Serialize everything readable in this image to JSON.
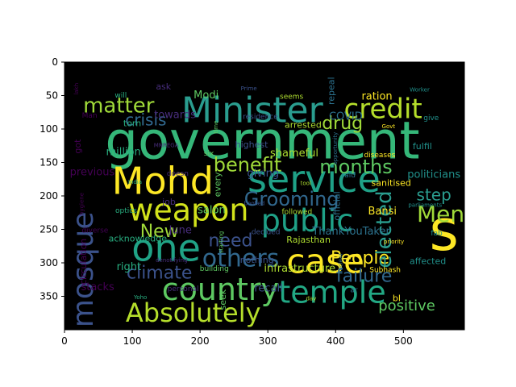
{
  "chart_data": {
    "type": "wordcloud_image",
    "xlim": [
      0,
      590
    ],
    "ylim": [
      400,
      0
    ],
    "xticks": [
      0,
      100,
      200,
      300,
      400,
      500
    ],
    "yticks": [
      0,
      50,
      100,
      150,
      200,
      250,
      300,
      350
    ],
    "background": "#000000",
    "words": [
      {
        "text": "government",
        "x": 292,
        "y": 123,
        "size": 64,
        "color": "#35b779"
      },
      {
        "text": "Minister",
        "x": 277,
        "y": 75,
        "size": 44,
        "color": "#2a9d8f"
      },
      {
        "text": "Mohd",
        "x": 145,
        "y": 182,
        "size": 46,
        "color": "#fde725"
      },
      {
        "text": "service",
        "x": 368,
        "y": 179,
        "size": 46,
        "color": "#1fa187"
      },
      {
        "text": "weapon",
        "x": 183,
        "y": 224,
        "size": 38,
        "color": "#d2e21b"
      },
      {
        "text": "public",
        "x": 358,
        "y": 240,
        "size": 38,
        "color": "#1fa187"
      },
      {
        "text": "case",
        "x": 385,
        "y": 301,
        "size": 42,
        "color": "#fde725"
      },
      {
        "text": "one",
        "x": 150,
        "y": 282,
        "size": 46,
        "color": "#20a386"
      },
      {
        "text": "others",
        "x": 260,
        "y": 295,
        "size": 30,
        "color": "#31688e"
      },
      {
        "text": "country",
        "x": 230,
        "y": 343,
        "size": 38,
        "color": "#5ec962"
      },
      {
        "text": "temple",
        "x": 395,
        "y": 347,
        "size": 38,
        "color": "#22a884"
      },
      {
        "text": "Absolutely",
        "x": 190,
        "y": 377,
        "size": 32,
        "color": "#b5de2b"
      },
      {
        "text": "mosque",
        "x": 30,
        "y": 310,
        "size": 36,
        "color": "#3b528b",
        "rotate": -90
      },
      {
        "text": "s",
        "x": 560,
        "y": 258,
        "size": 70,
        "color": "#fde725"
      },
      {
        "text": "credit",
        "x": 470,
        "y": 72,
        "size": 34,
        "color": "#b5de2b"
      },
      {
        "text": "matter",
        "x": 80,
        "y": 66,
        "size": 26,
        "color": "#a0da39"
      },
      {
        "text": "crisis",
        "x": 120,
        "y": 88,
        "size": 20,
        "color": "#31688e"
      },
      {
        "text": "drug",
        "x": 410,
        "y": 93,
        "size": 22,
        "color": "#a0da39"
      },
      {
        "text": "benefit",
        "x": 270,
        "y": 155,
        "size": 24,
        "color": "#a0da39"
      },
      {
        "text": "months",
        "x": 430,
        "y": 158,
        "size": 24,
        "color": "#5ec962"
      },
      {
        "text": "Grooming",
        "x": 335,
        "y": 206,
        "size": 24,
        "color": "#31688e"
      },
      {
        "text": "Men",
        "x": 555,
        "y": 229,
        "size": 28,
        "color": "#a0da39"
      },
      {
        "text": "New",
        "x": 140,
        "y": 254,
        "size": 22,
        "color": "#a0da39"
      },
      {
        "text": "need",
        "x": 245,
        "y": 268,
        "size": 22,
        "color": "#3b528b"
      },
      {
        "text": "People",
        "x": 436,
        "y": 294,
        "size": 22,
        "color": "#fde725"
      },
      {
        "text": "climate",
        "x": 140,
        "y": 316,
        "size": 22,
        "color": "#3b528b"
      },
      {
        "text": "failure",
        "x": 442,
        "y": 321,
        "size": 22,
        "color": "#31688e"
      },
      {
        "text": "elected",
        "x": 473,
        "y": 250,
        "size": 26,
        "color": "#2a9d8f",
        "rotate": -90
      },
      {
        "text": "step",
        "x": 545,
        "y": 200,
        "size": 20,
        "color": "#2a9d8f"
      },
      {
        "text": "positive",
        "x": 505,
        "y": 365,
        "size": 18,
        "color": "#5ec962"
      },
      {
        "text": "temple",
        "x": 0,
        "y": 0,
        "size": 0,
        "color": "#000000",
        "skip": true
      }
    ],
    "small_words": [
      "lakh",
      "will",
      "ask",
      "Modi",
      "Prime",
      "seems",
      "repeal",
      "ration",
      "Worker",
      "Man",
      "torn",
      "towards",
      "time",
      "residence",
      "arrested",
      "COVID",
      "Govt",
      "give",
      "got",
      "million",
      "MNREGA",
      "six",
      "highest",
      "shameful",
      "opportunity",
      "diseases",
      "fulfil",
      "previous",
      "India",
      "doesn",
      "every",
      "giving",
      "tool",
      "raid",
      "sanitised",
      "politicians",
      "hygiene",
      "optics",
      "job",
      "salon",
      "booked",
      "followed",
      "official",
      "Bansi",
      "parliaments",
      "diverse",
      "acknowledge",
      "June",
      "starting",
      "decided",
      "Rajasthan",
      "ThankYouTaker",
      "priority",
      "fab",
      "circulation",
      "right",
      "denotifying",
      "building",
      "nothing",
      "infrastructure",
      "nuclear",
      "Subhash",
      "affected",
      "stacks",
      "Yoho",
      "personal",
      "seek",
      "recall",
      "day",
      "ar",
      "bl"
    ]
  }
}
